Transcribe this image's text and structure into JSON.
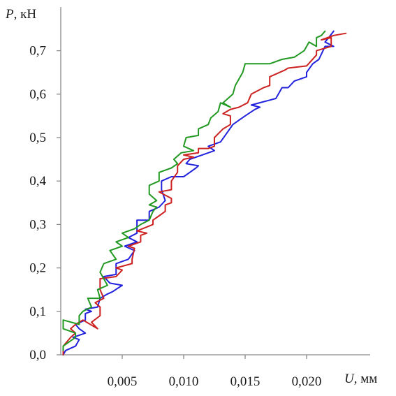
{
  "chart_data": {
    "type": "line",
    "title": "",
    "ylabel_var": "P",
    "ylabel_unit": ", кН",
    "xlabel_var": "U",
    "xlabel_unit": ", мм",
    "xlim": [
      0,
      0.025
    ],
    "ylim": [
      0,
      0.8
    ],
    "grid": false,
    "x_ticks": [
      {
        "value": 0.005,
        "label": "0,005"
      },
      {
        "value": 0.01,
        "label": "0,010"
      },
      {
        "value": 0.015,
        "label": "0,015"
      },
      {
        "value": 0.02,
        "label": "0,020"
      }
    ],
    "y_ticks": [
      {
        "value": 0.0,
        "label": "0,0"
      },
      {
        "value": 0.1,
        "label": "0,1"
      },
      {
        "value": 0.2,
        "label": "0,2"
      },
      {
        "value": 0.3,
        "label": "0,3"
      },
      {
        "value": 0.4,
        "label": "0,4"
      },
      {
        "value": 0.5,
        "label": "0,5"
      },
      {
        "value": 0.6,
        "label": "0,6"
      },
      {
        "value": 0.7,
        "label": "0,7"
      }
    ],
    "series": [
      {
        "color": "#2222dd",
        "points": [
          [
            0.0002,
            0.0
          ],
          [
            0.0004,
            0.01
          ],
          [
            0.0012,
            0.02
          ],
          [
            0.0015,
            0.035
          ],
          [
            0.001,
            0.04
          ],
          [
            0.002,
            0.05
          ],
          [
            0.0015,
            0.06
          ],
          [
            0.0012,
            0.07
          ],
          [
            0.002,
            0.08
          ],
          [
            0.002,
            0.095
          ],
          [
            0.0025,
            0.1
          ],
          [
            0.002,
            0.105
          ],
          [
            0.003,
            0.11
          ],
          [
            0.0032,
            0.13
          ],
          [
            0.0038,
            0.14
          ],
          [
            0.0042,
            0.145
          ],
          [
            0.005,
            0.16
          ],
          [
            0.004,
            0.165
          ],
          [
            0.0035,
            0.18
          ],
          [
            0.0045,
            0.185
          ],
          [
            0.0045,
            0.21
          ],
          [
            0.0055,
            0.22
          ],
          [
            0.006,
            0.24
          ],
          [
            0.0052,
            0.25
          ],
          [
            0.0062,
            0.26
          ],
          [
            0.0055,
            0.27
          ],
          [
            0.0062,
            0.28
          ],
          [
            0.0062,
            0.31
          ],
          [
            0.0072,
            0.31
          ],
          [
            0.0072,
            0.33
          ],
          [
            0.008,
            0.34
          ],
          [
            0.0085,
            0.355
          ],
          [
            0.0082,
            0.38
          ],
          [
            0.0082,
            0.4
          ],
          [
            0.009,
            0.41
          ],
          [
            0.01,
            0.41
          ],
          [
            0.0105,
            0.42
          ],
          [
            0.011,
            0.43
          ],
          [
            0.0112,
            0.435
          ],
          [
            0.0102,
            0.44
          ],
          [
            0.0105,
            0.45
          ],
          [
            0.0115,
            0.46
          ],
          [
            0.0125,
            0.47
          ],
          [
            0.012,
            0.48
          ],
          [
            0.013,
            0.49
          ],
          [
            0.0135,
            0.51
          ],
          [
            0.014,
            0.53
          ],
          [
            0.0145,
            0.54
          ],
          [
            0.015,
            0.55
          ],
          [
            0.0158,
            0.565
          ],
          [
            0.0162,
            0.57
          ],
          [
            0.0155,
            0.575
          ],
          [
            0.0175,
            0.59
          ],
          [
            0.018,
            0.615
          ],
          [
            0.0185,
            0.615
          ],
          [
            0.019,
            0.63
          ],
          [
            0.02,
            0.64
          ],
          [
            0.02,
            0.65
          ],
          [
            0.0205,
            0.67
          ],
          [
            0.021,
            0.68
          ],
          [
            0.0215,
            0.71
          ],
          [
            0.0222,
            0.71
          ],
          [
            0.0215,
            0.72
          ],
          [
            0.0218,
            0.73
          ],
          [
            0.0222,
            0.745
          ]
        ]
      },
      {
        "color": "#cc2222",
        "points": [
          [
            0.0002,
            0.0
          ],
          [
            0.0002,
            0.02
          ],
          [
            0.0008,
            0.04
          ],
          [
            0.0012,
            0.05
          ],
          [
            0.0008,
            0.06
          ],
          [
            0.0012,
            0.07
          ],
          [
            0.0018,
            0.08
          ],
          [
            0.003,
            0.06
          ],
          [
            0.0025,
            0.075
          ],
          [
            0.0032,
            0.09
          ],
          [
            0.0032,
            0.11
          ],
          [
            0.0028,
            0.12
          ],
          [
            0.0035,
            0.13
          ],
          [
            0.0032,
            0.15
          ],
          [
            0.0032,
            0.175
          ],
          [
            0.0045,
            0.18
          ],
          [
            0.005,
            0.195
          ],
          [
            0.0045,
            0.2
          ],
          [
            0.0058,
            0.21
          ],
          [
            0.0058,
            0.22
          ],
          [
            0.006,
            0.245
          ],
          [
            0.0055,
            0.25
          ],
          [
            0.0065,
            0.26
          ],
          [
            0.0065,
            0.275
          ],
          [
            0.007,
            0.28
          ],
          [
            0.0062,
            0.285
          ],
          [
            0.0075,
            0.3
          ],
          [
            0.0075,
            0.31
          ],
          [
            0.008,
            0.32
          ],
          [
            0.0085,
            0.33
          ],
          [
            0.0085,
            0.345
          ],
          [
            0.009,
            0.35
          ],
          [
            0.009,
            0.36
          ],
          [
            0.008,
            0.375
          ],
          [
            0.009,
            0.38
          ],
          [
            0.009,
            0.4
          ],
          [
            0.0095,
            0.42
          ],
          [
            0.0095,
            0.435
          ],
          [
            0.01,
            0.45
          ],
          [
            0.0108,
            0.455
          ],
          [
            0.01,
            0.46
          ],
          [
            0.0112,
            0.465
          ],
          [
            0.0112,
            0.475
          ],
          [
            0.012,
            0.475
          ],
          [
            0.0125,
            0.48
          ],
          [
            0.0125,
            0.5
          ],
          [
            0.0132,
            0.52
          ],
          [
            0.0138,
            0.53
          ],
          [
            0.0138,
            0.55
          ],
          [
            0.0132,
            0.555
          ],
          [
            0.0138,
            0.565
          ],
          [
            0.0145,
            0.57
          ],
          [
            0.0152,
            0.58
          ],
          [
            0.0155,
            0.6
          ],
          [
            0.0165,
            0.615
          ],
          [
            0.017,
            0.62
          ],
          [
            0.017,
            0.64
          ],
          [
            0.0178,
            0.65
          ],
          [
            0.0182,
            0.655
          ],
          [
            0.0185,
            0.66
          ],
          [
            0.02,
            0.665
          ],
          [
            0.0208,
            0.69
          ],
          [
            0.0208,
            0.7
          ],
          [
            0.022,
            0.71
          ],
          [
            0.022,
            0.73
          ],
          [
            0.0212,
            0.725
          ],
          [
            0.0222,
            0.735
          ],
          [
            0.0232,
            0.74
          ]
        ]
      },
      {
        "color": "#229922",
        "points": [
          [
            0.0002,
            0.01
          ],
          [
            0.0002,
            0.02
          ],
          [
            0.0012,
            0.04
          ],
          [
            0.0012,
            0.05
          ],
          [
            0.0002,
            0.06
          ],
          [
            0.0002,
            0.08
          ],
          [
            0.0015,
            0.07
          ],
          [
            0.0015,
            0.09
          ],
          [
            0.0018,
            0.1
          ],
          [
            0.0025,
            0.11
          ],
          [
            0.0022,
            0.13
          ],
          [
            0.0032,
            0.13
          ],
          [
            0.003,
            0.15
          ],
          [
            0.0038,
            0.16
          ],
          [
            0.0035,
            0.175
          ],
          [
            0.0032,
            0.19
          ],
          [
            0.0035,
            0.21
          ],
          [
            0.0045,
            0.22
          ],
          [
            0.004,
            0.24
          ],
          [
            0.005,
            0.25
          ],
          [
            0.0045,
            0.26
          ],
          [
            0.0055,
            0.27
          ],
          [
            0.005,
            0.28
          ],
          [
            0.006,
            0.29
          ],
          [
            0.0065,
            0.3
          ],
          [
            0.0072,
            0.31
          ],
          [
            0.0075,
            0.33
          ],
          [
            0.0078,
            0.34
          ],
          [
            0.0072,
            0.345
          ],
          [
            0.0078,
            0.355
          ],
          [
            0.0072,
            0.37
          ],
          [
            0.0072,
            0.39
          ],
          [
            0.008,
            0.4
          ],
          [
            0.008,
            0.42
          ],
          [
            0.009,
            0.43
          ],
          [
            0.0095,
            0.44
          ],
          [
            0.0092,
            0.45
          ],
          [
            0.0098,
            0.465
          ],
          [
            0.0108,
            0.47
          ],
          [
            0.01,
            0.48
          ],
          [
            0.0102,
            0.5
          ],
          [
            0.0112,
            0.505
          ],
          [
            0.0112,
            0.52
          ],
          [
            0.012,
            0.53
          ],
          [
            0.0122,
            0.545
          ],
          [
            0.0128,
            0.56
          ],
          [
            0.013,
            0.58
          ],
          [
            0.0138,
            0.57
          ],
          [
            0.0132,
            0.58
          ],
          [
            0.014,
            0.6
          ],
          [
            0.0142,
            0.62
          ],
          [
            0.0148,
            0.65
          ],
          [
            0.015,
            0.67
          ],
          [
            0.017,
            0.67
          ],
          [
            0.018,
            0.68
          ],
          [
            0.019,
            0.685
          ],
          [
            0.0198,
            0.7
          ],
          [
            0.0202,
            0.72
          ],
          [
            0.0208,
            0.71
          ],
          [
            0.0208,
            0.73
          ],
          [
            0.0212,
            0.735
          ],
          [
            0.0215,
            0.745
          ]
        ]
      }
    ]
  }
}
